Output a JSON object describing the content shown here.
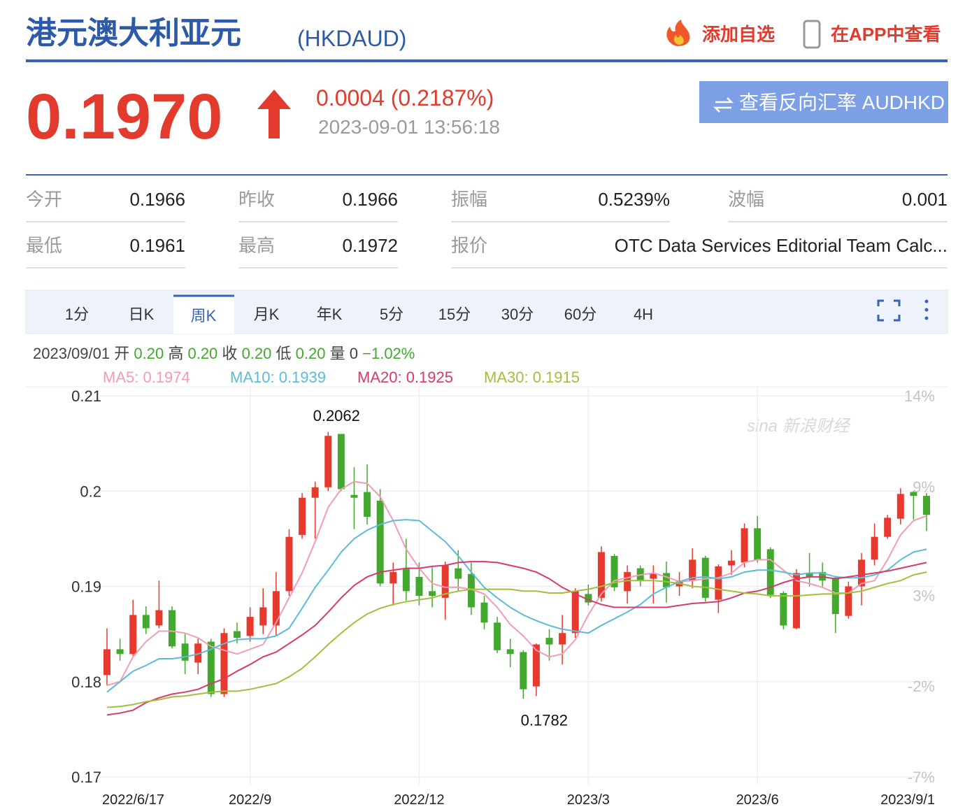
{
  "header": {
    "title": "港元澳大利亚元",
    "code": "(HKDAUD)",
    "add_watch": "添加自选",
    "open_app": "在APP中查看"
  },
  "quote": {
    "price": "0.1970",
    "change": "0.0004 (0.2187%)",
    "time": "2023-09-01 13:56:18",
    "reverse_button": "查看反向汇率 AUDHKD"
  },
  "stats": [
    {
      "label": "今开",
      "value": "0.1966"
    },
    {
      "label": "昨收",
      "value": "0.1966"
    },
    {
      "label": "振幅",
      "value": "0.5239%"
    },
    {
      "label": "波幅",
      "value": "0.001"
    },
    {
      "label": "最低",
      "value": "0.1961"
    },
    {
      "label": "最高",
      "value": "0.1972"
    },
    {
      "label": "报价",
      "value": "OTC Data Services Editorial Team Calc..."
    }
  ],
  "tabs": [
    "1分",
    "日K",
    "周K",
    "月K",
    "年K",
    "5分",
    "15分",
    "30分",
    "60分",
    "4H"
  ],
  "ohlc_info": {
    "date": "2023/09/01",
    "items": [
      {
        "label": "开",
        "value": "0.20"
      },
      {
        "label": "高",
        "value": "0.20"
      },
      {
        "label": "收",
        "value": "0.20"
      },
      {
        "label": "低",
        "value": "0.20"
      },
      {
        "label": "量",
        "value": "0"
      }
    ],
    "change": "−1.02%"
  },
  "chart_data": {
    "type": "candlestick",
    "watermark": "sina 新浪财经",
    "high_label": "0.2062",
    "low_label": "0.1782",
    "up_color": "#e8392e",
    "down_color": "#43a92e",
    "grid": true,
    "categories": [
      "2022/6/17",
      null,
      null,
      null,
      null,
      null,
      null,
      null,
      null,
      null,
      null,
      "2022/9",
      null,
      null,
      null,
      null,
      null,
      null,
      null,
      null,
      null,
      null,
      null,
      null,
      "2022/12",
      null,
      null,
      null,
      null,
      null,
      null,
      null,
      null,
      null,
      null,
      null,
      null,
      "2023/3",
      null,
      null,
      null,
      null,
      null,
      null,
      null,
      null,
      null,
      null,
      null,
      null,
      "2023/6",
      null,
      null,
      null,
      null,
      null,
      null,
      null,
      null,
      null,
      null,
      null,
      null,
      "2023/9/1"
    ],
    "open": [
      0.1807,
      0.1834,
      0.1829,
      0.187,
      0.1859,
      0.1875,
      0.184,
      0.182,
      0.1842,
      0.1787,
      0.1853,
      0.1848,
      0.1859,
      0.1859,
      0.1895,
      0.1954,
      0.1993,
      0.2004,
      0.206,
      0.1996,
      0.1999,
      0.199,
      0.1903,
      0.1919,
      0.191,
      0.1895,
      0.1888,
      0.1919,
      0.1913,
      0.1883,
      0.1862,
      0.1834,
      0.1831,
      0.1795,
      0.1846,
      0.1839,
      0.1851,
      0.1892,
      0.1888,
      0.1932,
      0.1895,
      0.1919,
      0.1908,
      0.1914,
      0.19,
      0.1906,
      0.193,
      0.1886,
      0.1922,
      0.1925,
      0.1961,
      0.1939,
      0.1893,
      0.1856,
      0.1914,
      0.1915,
      0.1909,
      0.1869,
      0.19,
      0.1928,
      0.1952,
      0.1971,
      0.1999,
      0.1995
    ],
    "high": [
      0.1856,
      0.1845,
      0.1886,
      0.1879,
      0.1906,
      0.1879,
      0.185,
      0.1845,
      0.1845,
      0.1856,
      0.1862,
      0.1878,
      0.1898,
      0.1915,
      0.196,
      0.1998,
      0.201,
      0.2062,
      0.206,
      0.2025,
      0.2028,
      0.2002,
      0.1925,
      0.195,
      0.1925,
      0.192,
      0.1926,
      0.1938,
      0.1925,
      0.189,
      0.1868,
      0.1845,
      0.1833,
      0.184,
      0.1855,
      0.187,
      0.1898,
      0.1902,
      0.1942,
      0.1934,
      0.1922,
      0.1922,
      0.1922,
      0.1926,
      0.1915,
      0.194,
      0.1932,
      0.1923,
      0.1938,
      0.1966,
      0.1974,
      0.1941,
      0.1895,
      0.1918,
      0.1935,
      0.1925,
      0.1911,
      0.1905,
      0.1935,
      0.1966,
      0.1975,
      0.2003,
      0.2,
      0.1998
    ],
    "low": [
      0.1796,
      0.1822,
      0.1826,
      0.185,
      0.1856,
      0.1835,
      0.1808,
      0.1808,
      0.1784,
      0.1784,
      0.184,
      0.1842,
      0.185,
      0.1848,
      0.189,
      0.195,
      0.195,
      0.2,
      0.2,
      0.196,
      0.1965,
      0.19,
      0.188,
      0.1885,
      0.188,
      0.1878,
      0.1865,
      0.1895,
      0.187,
      0.1855,
      0.183,
      0.1815,
      0.1782,
      0.1785,
      0.1822,
      0.1818,
      0.1846,
      0.188,
      0.1884,
      0.1895,
      0.1882,
      0.19,
      0.1882,
      0.1883,
      0.189,
      0.1898,
      0.1884,
      0.1872,
      0.1912,
      0.192,
      0.1925,
      0.1888,
      0.1855,
      0.1855,
      0.19,
      0.19,
      0.1851,
      0.1866,
      0.188,
      0.1922,
      0.195,
      0.1965,
      0.197,
      0.1958
    ],
    "close": [
      0.1834,
      0.1829,
      0.187,
      0.1856,
      0.1875,
      0.1837,
      0.1822,
      0.184,
      0.1787,
      0.1851,
      0.1846,
      0.1868,
      0.1878,
      0.1895,
      0.1952,
      0.1993,
      0.2004,
      0.2058,
      0.2002,
      0.1993,
      0.1973,
      0.1903,
      0.1915,
      0.1895,
      0.189,
      0.189,
      0.1922,
      0.1908,
      0.1878,
      0.1862,
      0.1833,
      0.1829,
      0.1792,
      0.1839,
      0.1839,
      0.1851,
      0.1895,
      0.1883,
      0.1936,
      0.1899,
      0.1915,
      0.1906,
      0.1914,
      0.1899,
      0.1905,
      0.1928,
      0.1888,
      0.1921,
      0.1927,
      0.1961,
      0.1928,
      0.1891,
      0.1859,
      0.1914,
      0.191,
      0.1906,
      0.1871,
      0.19,
      0.1928,
      0.1952,
      0.1972,
      0.1997,
      0.1995,
      0.1975
    ],
    "series": [
      {
        "name": "MA5: 0.1974",
        "color": "#f29cb6",
        "values": [
          0.1796,
          0.18,
          0.1826,
          0.1842,
          0.1853,
          0.1853,
          0.1851,
          0.1846,
          0.1837,
          0.1833,
          0.1829,
          0.1834,
          0.1839,
          0.1862,
          0.1888,
          0.1914,
          0.1947,
          0.1983,
          0.2002,
          0.201,
          0.2008,
          0.1994,
          0.1969,
          0.1939,
          0.1919,
          0.1903,
          0.1899,
          0.1899,
          0.1897,
          0.1892,
          0.1878,
          0.186,
          0.1848,
          0.1833,
          0.1826,
          0.1829,
          0.1844,
          0.187,
          0.1892,
          0.1906,
          0.1909,
          0.1912,
          0.1914,
          0.191,
          0.1905,
          0.1906,
          0.1908,
          0.1909,
          0.1914,
          0.1925,
          0.1928,
          0.1928,
          0.1917,
          0.1906,
          0.1903,
          0.1899,
          0.1893,
          0.1893,
          0.1903,
          0.1906,
          0.1928,
          0.1954,
          0.1969,
          0.1974
        ]
      },
      {
        "name": "MA10: 0.1939",
        "color": "#5bbcd8",
        "values": [
          0.1789,
          0.18,
          0.1811,
          0.1817,
          0.1824,
          0.1824,
          0.1826,
          0.1829,
          0.1834,
          0.184,
          0.1844,
          0.1845,
          0.1845,
          0.1848,
          0.1856,
          0.1877,
          0.1899,
          0.1917,
          0.1936,
          0.195,
          0.1959,
          0.1965,
          0.1969,
          0.197,
          0.1969,
          0.1958,
          0.1947,
          0.1932,
          0.1915,
          0.1899,
          0.1888,
          0.1878,
          0.187,
          0.1864,
          0.1859,
          0.1855,
          0.1853,
          0.1851,
          0.1859,
          0.1866,
          0.1873,
          0.1881,
          0.1892,
          0.1899,
          0.1905,
          0.1909,
          0.191,
          0.1908,
          0.191,
          0.1915,
          0.1917,
          0.1917,
          0.1915,
          0.1912,
          0.1914,
          0.1914,
          0.191,
          0.1909,
          0.1909,
          0.1912,
          0.1917,
          0.1928,
          0.1936,
          0.1939
        ]
      },
      {
        "name": "MA20: 0.1925",
        "color": "#d83a6c",
        "values": [
          0.1765,
          0.1767,
          0.177,
          0.1778,
          0.1783,
          0.1787,
          0.1789,
          0.1792,
          0.1798,
          0.1803,
          0.1811,
          0.1818,
          0.1826,
          0.1831,
          0.184,
          0.1849,
          0.1859,
          0.1873,
          0.1888,
          0.1901,
          0.191,
          0.1915,
          0.1917,
          0.1919,
          0.1919,
          0.1921,
          0.1922,
          0.1925,
          0.1926,
          0.1926,
          0.1925,
          0.1922,
          0.1919,
          0.1915,
          0.1908,
          0.1899,
          0.1892,
          0.1886,
          0.1881,
          0.1878,
          0.1878,
          0.1878,
          0.1878,
          0.1878,
          0.188,
          0.1882,
          0.1883,
          0.1884,
          0.1888,
          0.1893,
          0.1895,
          0.1899,
          0.1904,
          0.1908,
          0.191,
          0.191,
          0.1908,
          0.191,
          0.1912,
          0.1914,
          0.1916,
          0.1919,
          0.1922,
          0.1925
        ]
      },
      {
        "name": "MA30: 0.1915",
        "color": "#a3c03c",
        "values": [
          0.1773,
          0.1774,
          0.1776,
          0.1779,
          0.1781,
          0.1784,
          0.1785,
          0.1787,
          0.1789,
          0.179,
          0.179,
          0.1792,
          0.1795,
          0.1798,
          0.1805,
          0.1814,
          0.1826,
          0.1839,
          0.1851,
          0.1862,
          0.1871,
          0.1877,
          0.1881,
          0.1884,
          0.1886,
          0.1888,
          0.1892,
          0.1895,
          0.1897,
          0.1897,
          0.1897,
          0.1897,
          0.1895,
          0.1895,
          0.1893,
          0.1893,
          0.1895,
          0.1897,
          0.19,
          0.1904,
          0.1906,
          0.1906,
          0.1906,
          0.1905,
          0.1903,
          0.19,
          0.1899,
          0.1897,
          0.1895,
          0.1893,
          0.1892,
          0.189,
          0.189,
          0.189,
          0.1891,
          0.1892,
          0.1892,
          0.1893,
          0.1895,
          0.1899,
          0.1903,
          0.1906,
          0.1912,
          0.1915
        ]
      }
    ],
    "ylim": [
      0.17,
      0.21
    ],
    "yticks": [
      0.17,
      0.18,
      0.19,
      0.2,
      0.21
    ],
    "y2lim": [
      -7,
      14
    ],
    "y2ticks": [
      {
        "value": -7,
        "label": "-7%"
      },
      {
        "value": -2,
        "label": "-2%"
      },
      {
        "value": 3,
        "label": "3%"
      },
      {
        "value": 9,
        "label": "9%"
      },
      {
        "value": 14,
        "label": "14%"
      }
    ]
  }
}
